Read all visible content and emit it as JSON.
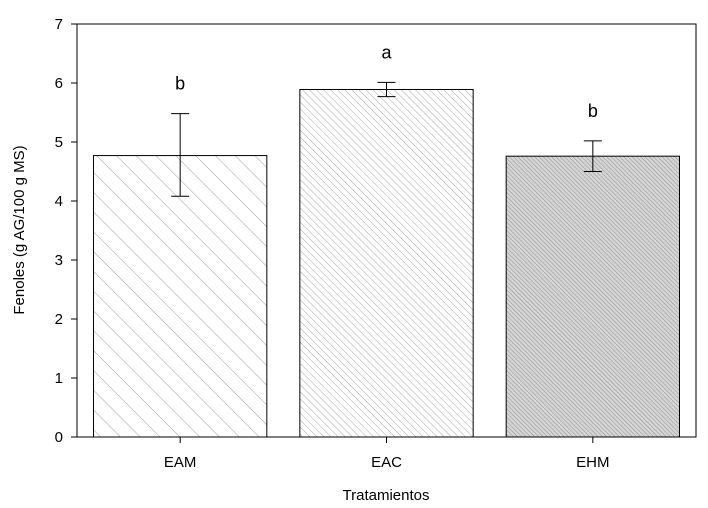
{
  "chart_data": {
    "type": "bar",
    "title": "",
    "xlabel": "Tratamientos",
    "ylabel": "Fenoles (g AG/100 g MS)",
    "ylim": [
      0,
      7
    ],
    "yticks": [
      0,
      1,
      2,
      3,
      4,
      5,
      6,
      7
    ],
    "categories": [
      "EAM",
      "EAC",
      "EHM"
    ],
    "values": [
      4.77,
      5.89,
      4.76
    ],
    "error_low": [
      4.08,
      5.77,
      4.5
    ],
    "error_high": [
      5.48,
      6.01,
      5.02
    ],
    "significance_labels": [
      "b",
      "a",
      "b"
    ],
    "bar_patterns": [
      "sparse-diagonal-hatch",
      "dense-diagonal-hatch",
      "very-dense-diagonal-hatch"
    ],
    "grid": false,
    "legend": "none",
    "colors": {
      "bar_fill": "#ffffff",
      "hatch": "#9a9a9a",
      "axis": "#000000"
    }
  }
}
